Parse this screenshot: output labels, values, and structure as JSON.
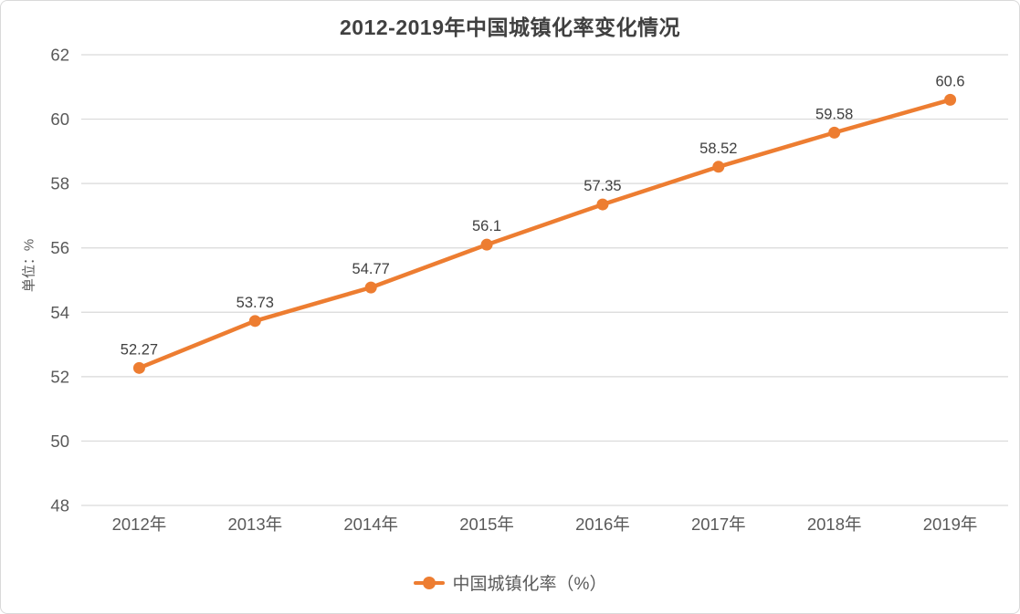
{
  "title": "2012-2019年中国城镇化率变化情况",
  "y_axis": {
    "unit_label": "单位：%",
    "tick_labels": [
      "48",
      "50",
      "52",
      "54",
      "56",
      "58",
      "60",
      "62"
    ]
  },
  "legend": {
    "label": "中国城镇化率（%）"
  },
  "chart_data": {
    "type": "line",
    "categories": [
      "2012年",
      "2013年",
      "2014年",
      "2015年",
      "2016年",
      "2017年",
      "2018年",
      "2019年"
    ],
    "series": [
      {
        "name": "中国城镇化率（%）",
        "values": [
          52.27,
          53.73,
          54.77,
          56.1,
          57.35,
          58.52,
          59.58,
          60.6
        ]
      }
    ],
    "data_labels": [
      "52.27",
      "53.73",
      "54.77",
      "56.1",
      "57.35",
      "58.52",
      "59.58",
      "60.6"
    ],
    "title": "2012-2019年中国城镇化率变化情况",
    "xlabel": "",
    "ylabel": "单位：%",
    "ylim": [
      48,
      62
    ],
    "ytick_step": 2,
    "grid": true,
    "legend_position": "bottom"
  },
  "colors": {
    "series": "#ED7D31",
    "gridline": "#D9D9D9",
    "title_text": "#404040",
    "axis_text": "#595959",
    "data_label_text": "#404040",
    "border": "#D9D9D9",
    "background": "#FFFFFF"
  }
}
